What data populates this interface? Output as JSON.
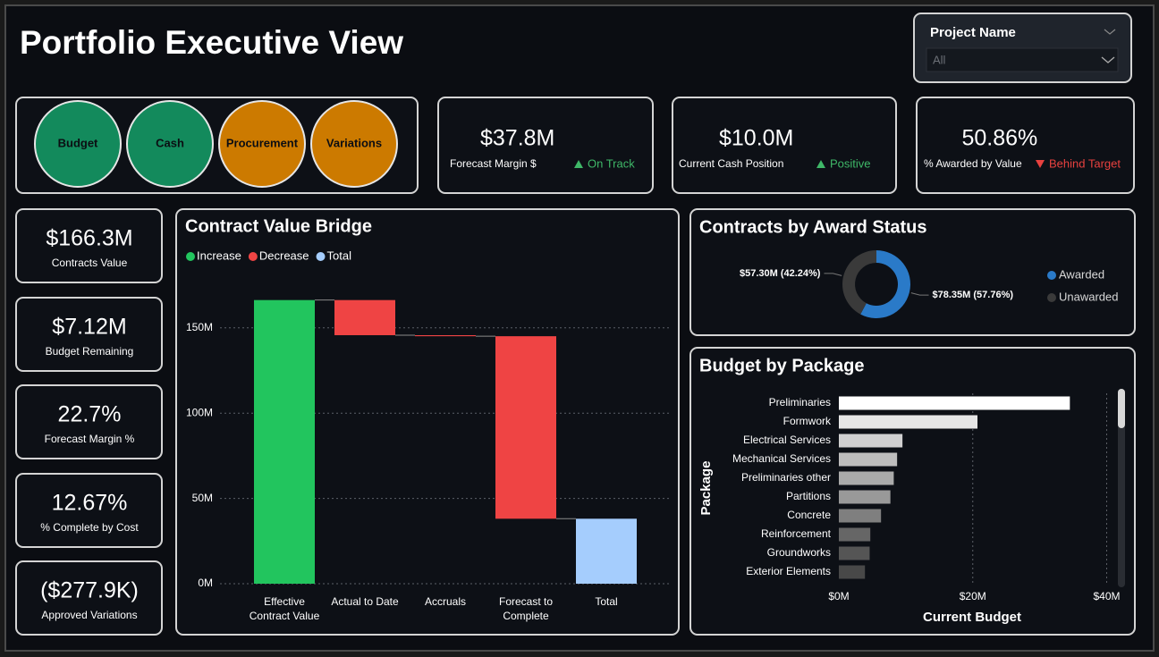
{
  "title": "Portfolio Executive View",
  "filter": {
    "label": "Project Name",
    "value": "All"
  },
  "status_circles": [
    {
      "label": "Budget",
      "color": "#138a5c"
    },
    {
      "label": "Cash",
      "color": "#138a5c"
    },
    {
      "label": "Procurement",
      "color": "#cc7a00"
    },
    {
      "label": "Variations",
      "color": "#cc7a00"
    }
  ],
  "kpis": [
    {
      "value": "$37.8M",
      "label": "Forecast Margin $",
      "status": "On Track",
      "trend": "up",
      "status_color": "#3fb868"
    },
    {
      "value": "$10.0M",
      "label": "Current Cash Position",
      "status": "Positive",
      "trend": "up",
      "status_color": "#3fb868"
    },
    {
      "value": "50.86%",
      "label": "% Awarded by Value",
      "status": "Behind Target",
      "trend": "down",
      "status_color": "#e8413f"
    }
  ],
  "side_cards": [
    {
      "value": "$166.3M",
      "label": "Contracts Value"
    },
    {
      "value": "$7.12M",
      "label": "Budget Remaining"
    },
    {
      "value": "22.7%",
      "label": "Forecast Margin %"
    },
    {
      "value": "12.67%",
      "label": "% Complete by Cost"
    },
    {
      "value": "($277.9K)",
      "label": "Approved Variations"
    }
  ],
  "chart_data": [
    {
      "type": "waterfall",
      "title": "Contract Value Bridge",
      "categories": [
        "Effective Contract Value",
        "Actual to Date",
        "Accruals",
        "Forecast to Complete",
        "Total"
      ],
      "series": [
        {
          "name": "Increase",
          "color": "#22c55e",
          "values": [
            166.3,
            null,
            null,
            null,
            null
          ]
        },
        {
          "name": "Decrease",
          "color": "#ef4444",
          "values": [
            null,
            -20.6,
            -0.6,
            -107.0,
            null
          ]
        },
        {
          "name": "Total",
          "color": "#a5cdfd",
          "is_total": true,
          "values": [
            null,
            null,
            null,
            null,
            38.1
          ]
        }
      ],
      "ylim": [
        0,
        185
      ],
      "yticks": [
        {
          "value": 0,
          "label": "0M"
        },
        {
          "value": 50,
          "label": "50M"
        },
        {
          "value": 100,
          "label": "100M"
        },
        {
          "value": 150,
          "label": "150M"
        }
      ],
      "grid": true
    },
    {
      "type": "donut",
      "title": "Contracts by Award Status",
      "categories": [
        "Awarded",
        "Unawarded"
      ],
      "values": [
        57.76,
        42.24
      ],
      "value_labels": [
        "$78.35M (57.76%)",
        "$57.30M (42.24%)"
      ],
      "colors": [
        "#2a7ac8",
        "#3a3a3a"
      ],
      "legend": "right"
    },
    {
      "type": "bar",
      "orientation": "horizontal",
      "title": "Budget by Package",
      "x_label": "Current Budget",
      "y_label": "Package",
      "categories": [
        "Preliminaries",
        "Formwork",
        "Electrical Services",
        "Mechanical Services",
        "Preliminaries other",
        "Partitions",
        "Concrete",
        "Reinforcement",
        "Groundworks",
        "Exterior Elements"
      ],
      "values": [
        34.5,
        20.7,
        9.5,
        8.7,
        8.2,
        7.7,
        6.3,
        4.7,
        4.6,
        3.9
      ],
      "colors": [
        "#ffffff",
        "#e6e6e6",
        "#d0d0d0",
        "#bdbdbd",
        "#aaaaaa",
        "#999999",
        "#7f7f7f",
        "#666666",
        "#555555",
        "#484848"
      ],
      "xlim": [
        0,
        41
      ],
      "xticks": [
        {
          "value": 0,
          "label": "$0M"
        },
        {
          "value": 20,
          "label": "$20M"
        },
        {
          "value": 40,
          "label": "$40M"
        }
      ],
      "grid": true
    }
  ]
}
